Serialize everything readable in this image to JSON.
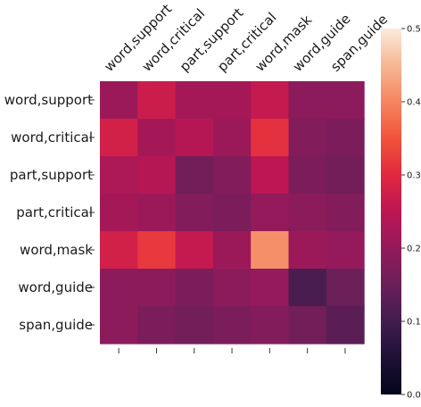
{
  "chart_data": {
    "type": "heatmap",
    "title": "",
    "xlabel": "",
    "ylabel": "",
    "x_labels": [
      "word,support",
      "word,critical",
      "part,support",
      "part,critical",
      "word,mask",
      "word,guide",
      "span,guide"
    ],
    "y_labels": [
      "word,support",
      "word,critical",
      "part,support",
      "part,critical",
      "word,mask",
      "word,guide",
      "span,guide"
    ],
    "values": [
      [
        0.21,
        0.27,
        0.22,
        0.22,
        0.26,
        0.19,
        0.19
      ],
      [
        0.28,
        0.22,
        0.24,
        0.21,
        0.31,
        0.18,
        0.17
      ],
      [
        0.23,
        0.24,
        0.16,
        0.18,
        0.25,
        0.17,
        0.16
      ],
      [
        0.22,
        0.21,
        0.18,
        0.17,
        0.2,
        0.19,
        0.18
      ],
      [
        0.28,
        0.32,
        0.26,
        0.21,
        0.41,
        0.21,
        0.2
      ],
      [
        0.19,
        0.19,
        0.17,
        0.19,
        0.2,
        0.11,
        0.15
      ],
      [
        0.19,
        0.17,
        0.16,
        0.17,
        0.18,
        0.16,
        0.13
      ]
    ],
    "colorbar": {
      "min": 0.0,
      "max": 0.5,
      "ticks": [
        "0.0",
        "0.1",
        "0.2",
        "0.3",
        "0.4",
        "0.5"
      ],
      "colormap": "rocket"
    },
    "grid": false
  }
}
